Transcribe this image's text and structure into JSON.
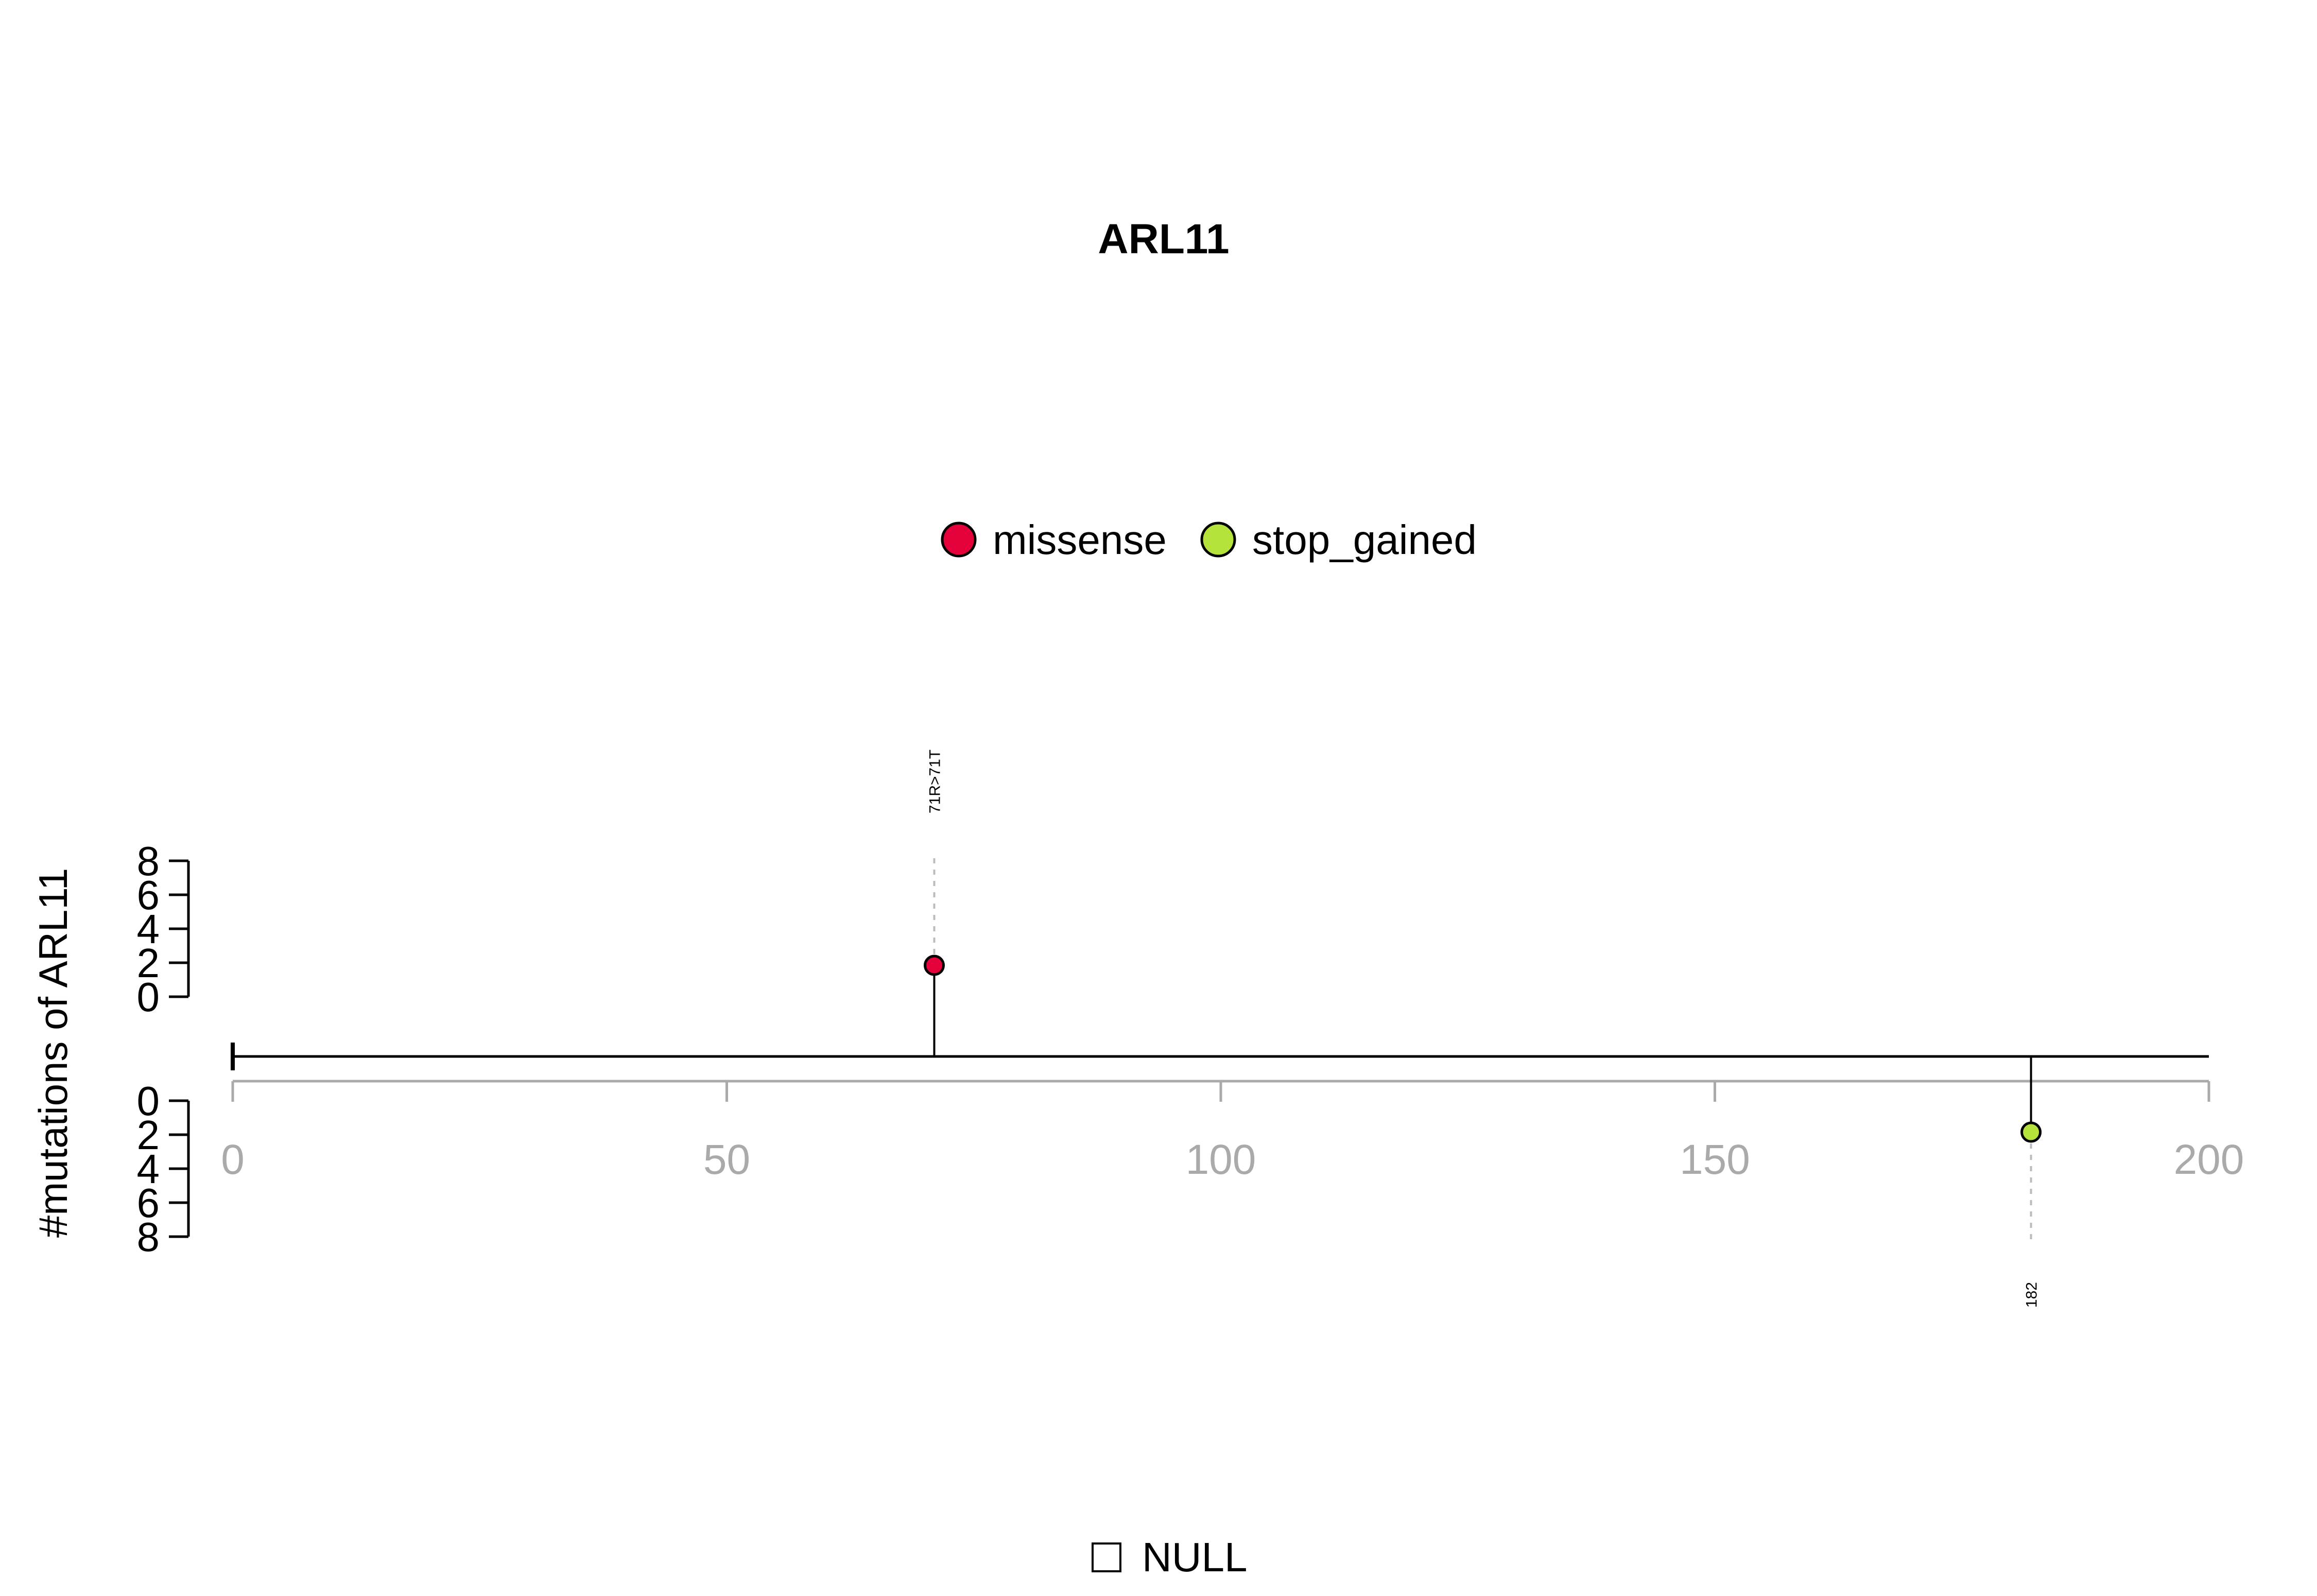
{
  "chart_data": {
    "type": "lollipop",
    "title": "ARL11",
    "ylabel": "#mutations of ARL11",
    "xlim": [
      0,
      200
    ],
    "x_ticks": [
      "0",
      "50",
      "100",
      "150",
      "200"
    ],
    "y_ticks": [
      "0",
      "2",
      "4",
      "6",
      "8"
    ],
    "ylim": [
      0,
      8
    ],
    "legend": {
      "position": "top",
      "entries": [
        {
          "name": "missense",
          "color": "#E4003A"
        },
        {
          "name": "stop_gained",
          "color": "#B5E33C"
        }
      ]
    },
    "series": [
      {
        "name": "missense",
        "points": [
          {
            "position": 71,
            "count": 1,
            "label": "71R>71T",
            "track": "upper"
          }
        ]
      },
      {
        "name": "stop_gained",
        "points": [
          {
            "position": 182,
            "count": 1,
            "label": "182",
            "track": "lower"
          }
        ]
      }
    ],
    "bottom_legend": {
      "label": "NULL"
    }
  },
  "colors": {
    "axis_gray": "#AAAAAA",
    "line": "#000000",
    "guide": "#BBBBBB"
  }
}
